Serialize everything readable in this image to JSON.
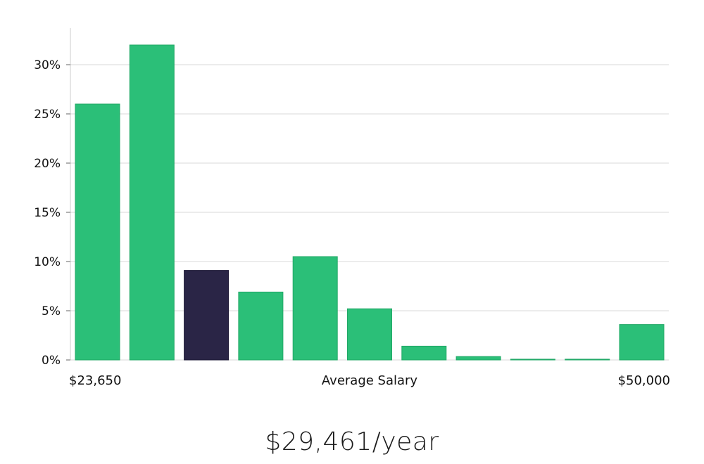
{
  "chart_data": {
    "type": "bar",
    "title": "",
    "xlabel": "Average Salary",
    "ylabel": "",
    "x_min_label": "$23,650",
    "x_max_label": "$50,000",
    "ylim": [
      0,
      35
    ],
    "yticks": [
      0,
      5,
      10,
      15,
      20,
      25,
      30
    ],
    "ytick_labels": [
      "0%",
      "5%",
      "10%",
      "15%",
      "20%",
      "25%",
      "30%"
    ],
    "grid": true,
    "values": [
      26,
      32,
      9.1,
      6.9,
      10.5,
      5.2,
      1.4,
      0.35,
      0.08,
      0.08,
      3.6
    ],
    "highlight_index": 2,
    "colors": {
      "bar": "#2bbf78",
      "bar_edge": "#22a866",
      "highlight": "#2a2546",
      "grid": "#d9d9d9",
      "axis": "#cccccc"
    }
  },
  "summary": {
    "salary_text": "$29,461/year"
  }
}
